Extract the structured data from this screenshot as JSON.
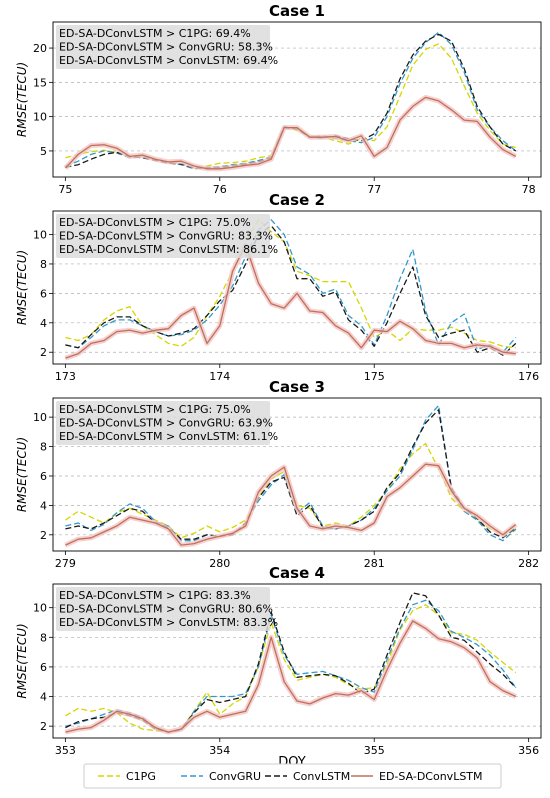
{
  "figure": {
    "xlabel": "DOY",
    "ylabel": "RMSE(TECU)"
  },
  "legend": [
    {
      "name": "C1PG",
      "color": "#d6d600",
      "dash": "6,3"
    },
    {
      "name": "ConvGRU",
      "color": "#3399cc",
      "dash": "6,3"
    },
    {
      "name": "ConvLSTM",
      "color": "#1a1a1a",
      "dash": "6,3"
    },
    {
      "name": "ED-SA-DConvLSTM",
      "color": "#c0705a",
      "dash": ""
    }
  ],
  "chart_data": [
    {
      "type": "line",
      "title": "Case 1",
      "xlabel": "",
      "ylabel": "RMSE(TECU)",
      "xlim": [
        74.92,
        78.08
      ],
      "ylim": [
        1.2,
        23.8
      ],
      "xticks": [
        75,
        76,
        77,
        78
      ],
      "yticks": [
        5,
        10,
        15,
        20
      ],
      "annotations": [
        "ED-SA-DConvLSTM > C1PG: 69.4%",
        "ED-SA-DConvLSTM > ConvGRU: 58.3%",
        "ED-SA-DConvLSTM > ConvLSTM: 69.4%"
      ],
      "x": [
        75.0,
        75.083,
        75.167,
        75.25,
        75.333,
        75.417,
        75.5,
        75.583,
        75.667,
        75.75,
        75.833,
        75.917,
        76.0,
        76.083,
        76.167,
        76.25,
        76.333,
        76.417,
        76.5,
        76.583,
        76.667,
        76.75,
        76.833,
        76.917,
        77.0,
        77.083,
        77.167,
        77.25,
        77.333,
        77.417,
        77.5,
        77.583,
        77.667,
        77.75,
        77.833,
        77.917
      ],
      "series": [
        {
          "name": "C1PG",
          "values": [
            4.0,
            4.5,
            4.9,
            5.1,
            4.8,
            4.1,
            4.2,
            3.7,
            3.4,
            3.2,
            2.5,
            2.8,
            3.2,
            3.3,
            3.5,
            4.0,
            4.3,
            8.5,
            8.0,
            7.2,
            7.0,
            6.5,
            6.0,
            6.8,
            6.5,
            8.5,
            13.0,
            17.5,
            19.8,
            20.6,
            18.5,
            14.5,
            10.5,
            8.0,
            6.0,
            5.5
          ]
        },
        {
          "name": "ConvGRU",
          "values": [
            2.8,
            3.5,
            4.5,
            5.0,
            4.7,
            4.0,
            4.1,
            3.8,
            3.3,
            3.0,
            2.4,
            2.6,
            2.7,
            3.0,
            3.2,
            3.6,
            4.1,
            8.6,
            8.3,
            7.0,
            7.2,
            6.8,
            6.5,
            6.2,
            7.0,
            10.0,
            14.8,
            18.5,
            20.8,
            22.3,
            20.5,
            16.5,
            11.0,
            8.5,
            6.5,
            5.0
          ]
        },
        {
          "name": "ConvLSTM",
          "values": [
            2.6,
            3.0,
            3.8,
            4.5,
            4.8,
            4.2,
            4.0,
            3.6,
            3.2,
            3.1,
            2.5,
            2.5,
            2.6,
            2.8,
            3.1,
            3.4,
            4.0,
            8.4,
            8.2,
            7.0,
            6.9,
            7.2,
            6.8,
            6.5,
            7.5,
            10.5,
            15.5,
            19.0,
            21.0,
            22.0,
            21.0,
            17.0,
            11.5,
            8.5,
            6.0,
            5.0
          ]
        },
        {
          "name": "ED-SA-DConvLSTM",
          "values": [
            2.5,
            4.5,
            5.8,
            5.9,
            5.4,
            4.2,
            4.4,
            3.8,
            3.4,
            3.5,
            2.8,
            2.4,
            2.4,
            2.6,
            2.9,
            3.1,
            3.8,
            8.4,
            8.4,
            7.0,
            7.0,
            7.1,
            6.5,
            7.2,
            4.2,
            5.5,
            9.5,
            11.5,
            12.8,
            12.3,
            11.0,
            9.5,
            9.3,
            7.0,
            5.2,
            4.2
          ]
        }
      ]
    },
    {
      "type": "line",
      "title": "Case 2",
      "xlabel": "",
      "ylabel": "RMSE(TECU)",
      "xlim": [
        172.92,
        176.08
      ],
      "ylim": [
        1.2,
        11.6
      ],
      "xticks": [
        173,
        174,
        175,
        176
      ],
      "yticks": [
        2,
        4,
        6,
        8,
        10
      ],
      "annotations": [
        "ED-SA-DConvLSTM > C1PG: 75.0%",
        "ED-SA-DConvLSTM > ConvGRU: 83.3%",
        "ED-SA-DConvLSTM > ConvLSTM: 86.1%"
      ],
      "x": [
        173.0,
        173.083,
        173.167,
        173.25,
        173.333,
        173.417,
        173.5,
        173.583,
        173.667,
        173.75,
        173.833,
        173.917,
        174.0,
        174.083,
        174.167,
        174.25,
        174.333,
        174.417,
        174.5,
        174.583,
        174.667,
        174.75,
        174.833,
        174.917,
        175.0,
        175.083,
        175.167,
        175.25,
        175.333,
        175.417,
        175.5,
        175.583,
        175.667,
        175.75,
        175.833,
        175.917
      ],
      "series": [
        {
          "name": "C1PG",
          "values": [
            3.0,
            2.8,
            3.2,
            4.2,
            4.8,
            5.1,
            3.8,
            3.2,
            2.6,
            2.4,
            3.0,
            4.5,
            5.8,
            7.5,
            9.5,
            11.0,
            10.2,
            9.5,
            7.5,
            7.2,
            6.8,
            6.8,
            6.8,
            5.0,
            3.0,
            3.5,
            2.8,
            3.6,
            3.5,
            3.5,
            3.7,
            3.3,
            2.8,
            2.7,
            2.4,
            2.3
          ]
        },
        {
          "name": "ConvGRU",
          "values": [
            2.5,
            2.3,
            3.0,
            3.8,
            4.2,
            4.2,
            3.8,
            3.4,
            3.1,
            3.2,
            3.5,
            4.2,
            5.2,
            6.5,
            8.5,
            10.3,
            11.0,
            10.0,
            7.8,
            7.3,
            6.0,
            6.3,
            4.5,
            3.8,
            2.5,
            4.5,
            7.0,
            9.0,
            4.8,
            2.5,
            4.0,
            4.6,
            2.2,
            2.5,
            2.0,
            3.0
          ]
        },
        {
          "name": "ConvLSTM",
          "values": [
            2.5,
            2.3,
            3.2,
            4.0,
            4.4,
            4.4,
            3.8,
            3.4,
            3.1,
            3.3,
            3.6,
            4.5,
            5.5,
            6.2,
            8.0,
            10.0,
            10.6,
            9.5,
            7.0,
            7.0,
            5.8,
            6.1,
            4.2,
            3.5,
            2.4,
            4.0,
            6.0,
            7.8,
            4.5,
            3.0,
            3.3,
            3.5,
            2.0,
            2.3,
            1.8,
            2.6
          ]
        },
        {
          "name": "ED-SA-DConvLSTM",
          "values": [
            1.6,
            1.9,
            2.6,
            2.8,
            3.4,
            3.5,
            3.3,
            3.5,
            3.6,
            4.5,
            5.0,
            2.6,
            3.8,
            7.5,
            9.3,
            6.7,
            5.3,
            5.0,
            6.0,
            4.8,
            4.7,
            3.8,
            3.3,
            2.3,
            3.5,
            3.4,
            4.1,
            3.6,
            2.8,
            2.6,
            2.6,
            2.3,
            2.5,
            2.4,
            2.0,
            1.9
          ]
        }
      ]
    },
    {
      "type": "line",
      "title": "Case 3",
      "xlabel": "",
      "ylabel": "RMSE(TECU)",
      "xlim": [
        278.92,
        282.08
      ],
      "ylim": [
        0.9,
        11.3
      ],
      "xticks": [
        279,
        280,
        281,
        282
      ],
      "yticks": [
        2,
        4,
        6,
        8,
        10
      ],
      "annotations": [
        "ED-SA-DConvLSTM > C1PG: 75.0%",
        "ED-SA-DConvLSTM > ConvGRU: 63.9%",
        "ED-SA-DConvLSTM > ConvLSTM: 61.1%"
      ],
      "x": [
        279.0,
        279.083,
        279.167,
        279.25,
        279.333,
        279.417,
        279.5,
        279.583,
        279.667,
        279.75,
        279.833,
        279.917,
        280.0,
        280.083,
        280.167,
        280.25,
        280.333,
        280.417,
        280.5,
        280.583,
        280.667,
        280.75,
        280.833,
        280.917,
        281.0,
        281.083,
        281.167,
        281.25,
        281.333,
        281.417,
        281.5,
        281.583,
        281.667,
        281.75,
        281.833,
        281.917
      ],
      "series": [
        {
          "name": "C1PG",
          "values": [
            3.0,
            3.6,
            3.2,
            2.8,
            3.5,
            3.8,
            3.4,
            3.0,
            2.6,
            1.8,
            2.1,
            2.6,
            2.2,
            2.5,
            3.0,
            4.5,
            5.8,
            6.3,
            4.0,
            3.8,
            2.6,
            2.8,
            2.6,
            3.2,
            4.0,
            5.0,
            6.5,
            7.5,
            8.2,
            6.5,
            4.5,
            3.6,
            3.0,
            2.4,
            2.0,
            2.3
          ]
        },
        {
          "name": "ConvGRU",
          "values": [
            2.6,
            2.8,
            2.3,
            2.7,
            3.5,
            4.1,
            3.8,
            2.9,
            2.6,
            1.6,
            1.6,
            2.0,
            1.9,
            2.0,
            2.8,
            4.3,
            5.4,
            6.1,
            3.5,
            4.2,
            2.6,
            2.4,
            2.6,
            3.0,
            3.8,
            5.0,
            6.0,
            7.8,
            9.8,
            10.8,
            5.0,
            3.6,
            3.0,
            2.0,
            1.6,
            2.4
          ]
        },
        {
          "name": "ConvLSTM",
          "values": [
            2.4,
            2.6,
            2.4,
            2.8,
            3.3,
            3.8,
            3.6,
            2.8,
            2.5,
            1.7,
            1.7,
            2.0,
            1.9,
            2.0,
            2.8,
            4.5,
            5.6,
            5.9,
            3.3,
            4.0,
            2.5,
            2.4,
            2.6,
            3.0,
            3.6,
            5.2,
            6.2,
            8.0,
            9.6,
            10.5,
            5.2,
            3.8,
            3.1,
            2.2,
            1.8,
            2.5
          ]
        },
        {
          "name": "ED-SA-DConvLSTM",
          "values": [
            1.3,
            1.7,
            1.8,
            2.2,
            2.6,
            3.2,
            3.0,
            2.8,
            2.4,
            1.3,
            1.4,
            1.7,
            1.9,
            2.1,
            2.6,
            4.9,
            6.0,
            6.6,
            3.8,
            2.6,
            2.4,
            2.6,
            2.5,
            2.3,
            2.8,
            4.6,
            5.2,
            6.0,
            6.8,
            6.7,
            5.0,
            3.8,
            3.3,
            2.6,
            2.0,
            2.7
          ]
        }
      ]
    },
    {
      "type": "line",
      "title": "Case 4",
      "xlabel": "DOY",
      "ylabel": "RMSE(TECU)",
      "xlim": [
        352.92,
        356.08
      ],
      "ylim": [
        1.2,
        11.6
      ],
      "xticks": [
        353,
        354,
        355,
        356
      ],
      "yticks": [
        2,
        4,
        6,
        8,
        10
      ],
      "annotations": [
        "ED-SA-DConvLSTM > C1PG: 83.3%",
        "ED-SA-DConvLSTM > ConvGRU: 80.6%",
        "ED-SA-DConvLSTM > ConvLSTM: 83.3%"
      ],
      "x": [
        353.0,
        353.083,
        353.167,
        353.25,
        353.333,
        353.417,
        353.5,
        353.583,
        353.667,
        353.75,
        353.833,
        353.917,
        354.0,
        354.083,
        354.167,
        354.25,
        354.333,
        354.417,
        354.5,
        354.583,
        354.667,
        354.75,
        354.833,
        354.917,
        355.0,
        355.083,
        355.167,
        355.25,
        355.333,
        355.417,
        355.5,
        355.583,
        355.667,
        355.75,
        355.833,
        355.917
      ],
      "series": [
        {
          "name": "C1PG",
          "values": [
            2.7,
            3.2,
            3.0,
            3.2,
            2.9,
            2.2,
            1.8,
            1.7,
            1.6,
            1.8,
            3.0,
            4.3,
            2.8,
            3.5,
            4.0,
            6.0,
            9.0,
            6.5,
            5.1,
            5.3,
            5.5,
            5.3,
            4.8,
            4.5,
            4.6,
            6.2,
            8.5,
            9.8,
            10.2,
            9.5,
            8.3,
            8.2,
            7.8,
            7.0,
            6.3,
            5.6
          ]
        },
        {
          "name": "ConvGRU",
          "values": [
            2.0,
            2.2,
            2.5,
            2.8,
            3.1,
            2.9,
            2.6,
            1.8,
            1.6,
            1.7,
            3.0,
            4.0,
            4.0,
            4.0,
            4.2,
            6.0,
            9.5,
            6.8,
            5.5,
            5.6,
            5.7,
            5.4,
            5.1,
            4.6,
            4.3,
            6.5,
            8.6,
            10.2,
            10.5,
            9.8,
            8.4,
            8.0,
            7.5,
            6.8,
            5.8,
            4.6
          ]
        },
        {
          "name": "ConvLSTM",
          "values": [
            1.9,
            2.3,
            2.5,
            2.6,
            2.9,
            2.7,
            2.4,
            1.8,
            1.6,
            1.8,
            2.9,
            3.8,
            3.6,
            3.8,
            4.0,
            6.2,
            9.7,
            7.0,
            5.3,
            5.4,
            5.5,
            5.4,
            4.9,
            4.2,
            4.5,
            6.8,
            9.0,
            11.0,
            10.8,
            9.5,
            8.0,
            7.8,
            7.0,
            6.2,
            5.5,
            4.6
          ]
        },
        {
          "name": "ED-SA-DConvLSTM",
          "values": [
            1.6,
            1.8,
            1.9,
            2.4,
            3.0,
            2.8,
            2.5,
            1.9,
            1.6,
            1.8,
            2.6,
            3.0,
            2.6,
            2.8,
            3.0,
            4.8,
            8.0,
            5.0,
            3.7,
            3.5,
            3.9,
            4.2,
            4.1,
            4.4,
            3.8,
            5.8,
            7.6,
            9.1,
            8.6,
            7.9,
            7.7,
            7.3,
            6.6,
            5.0,
            4.4,
            4.0
          ]
        }
      ]
    }
  ]
}
